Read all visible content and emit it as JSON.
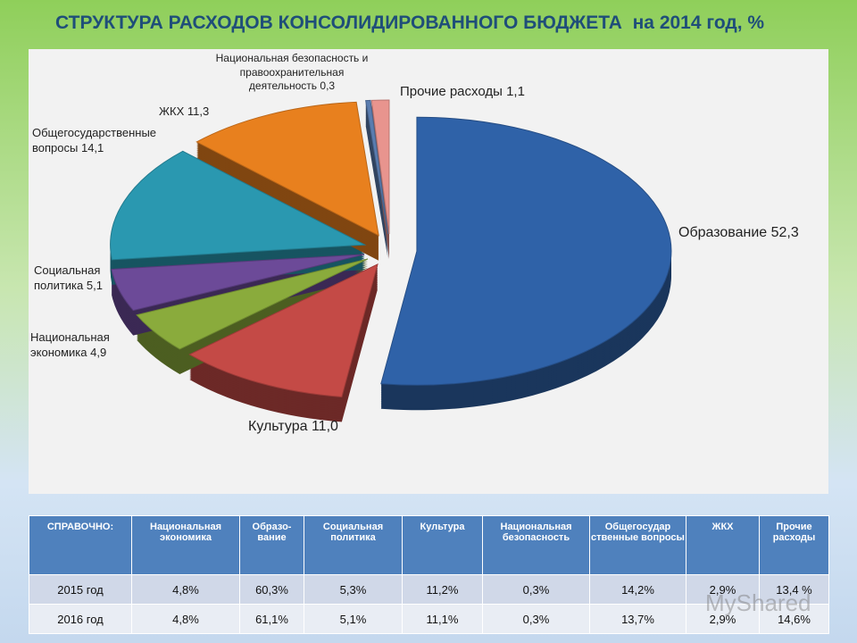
{
  "chart_data": {
    "type": "pie",
    "title": "СТРУКТУРА РАСХОДОВ КОНСОЛИДИРОВАННОГО БЮДЖЕТА  на 2014 год, %",
    "categories": [
      "Образование",
      "Культура",
      "Национальная экономика",
      "Социальная политика",
      "Общегосударственные вопросы",
      "ЖКХ",
      "Национальная безопасность и правоохранительная деятельность",
      "Прочие расходы"
    ],
    "values": [
      52.3,
      11.0,
      4.9,
      5.1,
      14.1,
      11.3,
      0.3,
      1.1
    ],
    "value_labels": [
      "52,3",
      "11,0",
      "4,9",
      "5,1",
      "14,1",
      "11,3",
      "0,3",
      "1,1"
    ],
    "colors": [
      "#2f62a8",
      "#c44a46",
      "#8aab3c",
      "#6c4a98",
      "#2a98b0",
      "#e8801e",
      "#5a7db0",
      "#e8948e"
    ]
  },
  "table": {
    "header": [
      "СПРАВОЧНО:",
      "Национальная экономика",
      "Образо-вание",
      "Социальная политика",
      "Культура",
      "Национальная безопасность",
      "Общегосудар ственные вопросы",
      "ЖКХ",
      "Прочие расходы"
    ],
    "rows": [
      [
        "2015 год",
        "4,8%",
        "60,3%",
        "5,3%",
        "11,2%",
        "0,3%",
        "14,2%",
        "2,9%",
        "13,4 %"
      ],
      [
        "2016 год",
        "4,8%",
        "61,1%",
        "5,1%",
        "11,1%",
        "0,3%",
        "13,7%",
        "2,9%",
        "14,6%"
      ]
    ]
  },
  "watermark": "MyShared"
}
